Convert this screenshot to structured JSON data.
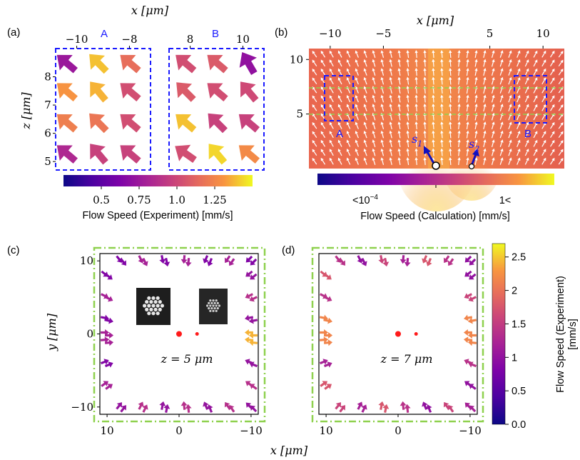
{
  "panels": {
    "a": {
      "label": "(a)"
    },
    "b": {
      "label": "(b)"
    },
    "c": {
      "label": "(c)"
    },
    "d": {
      "label": "(d)"
    }
  },
  "axes": {
    "x_label": "x [μm]",
    "z_label": "z [μm]",
    "y_label": "y [μm]",
    "x_bottom_label": "x [μm]"
  },
  "boxes": {
    "A": "A",
    "B": "B"
  },
  "sources": {
    "s1": "s",
    "s1_sub": "1",
    "s2": "s",
    "s2_sub": "2"
  },
  "z_labels": {
    "c": "z = 5 μm",
    "d": "z = 7 μm"
  },
  "colorbars": {
    "a_label": "Flow Speed (Experiment) [mm/s]",
    "b_label": "Flow Speed (Calculation) [mm/s]",
    "b_low": "<10",
    "b_low_exp": "−4",
    "b_high": "1<",
    "cd_label_1": "Flow Speed (Experiment)",
    "cd_label_2": "[mm/s]"
  },
  "colors": {
    "box_blue": "#1a1aff",
    "guide_green": "#8fd14f",
    "source_red": "#ff1a1a",
    "arrow_white": "#ffffff"
  },
  "chart_data": [
    {
      "panel": "a",
      "type": "scatter",
      "subplots": [
        {
          "box": "A",
          "xlim": [
            -10.8,
            -7.2
          ],
          "x_ticks": [
            -10,
            -8
          ],
          "x": [
            -10.4,
            -9.2,
            -8.0
          ],
          "z": [
            8.5,
            7.5,
            6.4,
            5.3
          ]
        },
        {
          "box": "B",
          "xlim": [
            7.2,
            10.8
          ],
          "x_ticks": [
            8,
            10
          ],
          "x": [
            7.8,
            9.0,
            10.2
          ],
          "z": [
            8.5,
            7.5,
            6.4,
            5.3
          ]
        }
      ],
      "ylim": [
        4.7,
        9.0
      ],
      "y_ticks": [
        5,
        6,
        7,
        8
      ],
      "colorbar": {
        "range": [
          0.25,
          1.5
        ],
        "ticks": [
          0.5,
          0.75,
          1.0,
          1.25
        ],
        "tick_labels": [
          "0.5",
          "0.75",
          "1.0",
          "1.25"
        ]
      }
    },
    {
      "panel": "b",
      "type": "heatmap",
      "xlim": [
        -12,
        12
      ],
      "ylim": [
        0,
        11
      ],
      "x_ticks": [
        -10,
        -5,
        5,
        10
      ],
      "x_tick_labels": [
        "−10",
        "−5",
        "5",
        "10"
      ],
      "y_ticks": [
        5,
        10
      ],
      "guide_lines_z": [
        5,
        7.5
      ],
      "box_A": {
        "x": [
          -11,
          -7
        ],
        "z": [
          5,
          8.5
        ]
      },
      "box_B": {
        "x": [
          7.5,
          11.5
        ],
        "z": [
          4.5,
          8.5
        ]
      },
      "sources_x": [
        -1.2,
        3.3
      ]
    },
    {
      "panel": "c",
      "type": "scatter",
      "xlim": [
        11,
        -11
      ],
      "ylim": [
        -11,
        11
      ],
      "x_ticks": [
        10,
        0,
        -10
      ],
      "x_tick_labels": [
        "10",
        "0",
        "−10"
      ],
      "y_ticks": [
        10,
        0,
        -10
      ],
      "y_tick_labels": [
        "10",
        "0",
        "−10"
      ],
      "sources": [
        [
          0,
          0
        ],
        [
          -2.5,
          0
        ]
      ]
    },
    {
      "panel": "d",
      "type": "scatter",
      "xlim": [
        11,
        -11
      ],
      "ylim": [
        -11,
        11
      ],
      "x_ticks": [
        10,
        0,
        -10
      ],
      "x_tick_labels": [
        "10",
        "0",
        "−10"
      ],
      "sources": [
        [
          0,
          0
        ],
        [
          -2.5,
          0
        ]
      ]
    },
    {
      "panel": "cd-colorbar",
      "type": "colorbar",
      "range": [
        0,
        2.7
      ],
      "ticks": [
        0.0,
        0.5,
        1,
        1.5,
        2,
        2.5
      ],
      "tick_labels": [
        "0.0",
        "0.5",
        "1",
        "1.5",
        "2",
        "2.5"
      ]
    }
  ]
}
